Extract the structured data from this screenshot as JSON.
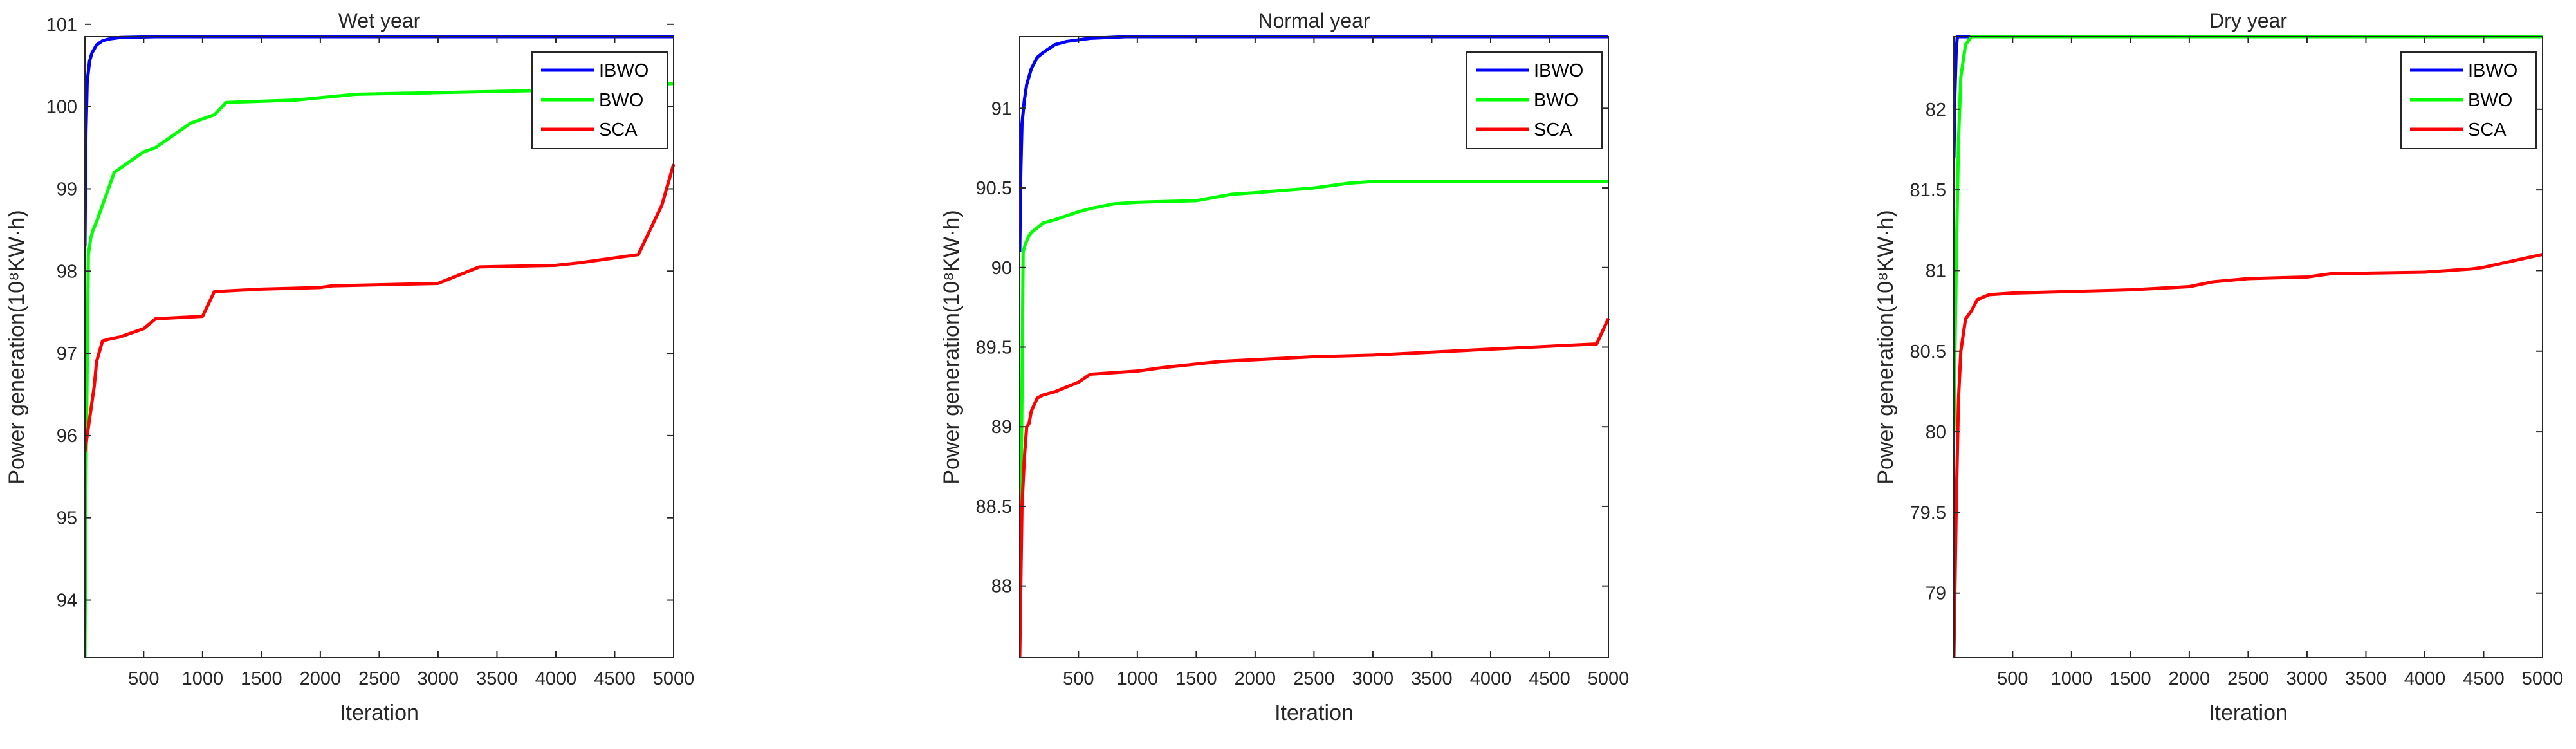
{
  "chart_data": [
    {
      "type": "line",
      "title": "Wet year",
      "xlabel": "Iteration",
      "ylabel": "Power generation(10⁸KW·h)",
      "xlim": [
        1,
        5000
      ],
      "ylim": [
        93.3,
        100.85
      ],
      "xticks": [
        500,
        1000,
        1500,
        2000,
        2500,
        3000,
        3500,
        4000,
        4500,
        5000
      ],
      "xtick_labels": [
        "500",
        "1000",
        "1500",
        "2000",
        "2500",
        "3000",
        "3500",
        "4000",
        "4500",
        "5000"
      ],
      "yticks": [
        94,
        95,
        96,
        97,
        98,
        99,
        100,
        101
      ],
      "ytick_labels": [
        "94",
        "95",
        "96",
        "97",
        "98",
        "99",
        "100",
        "101"
      ],
      "legend_position": "top-right",
      "grid": false,
      "series": [
        {
          "name": "IBWO",
          "color": "#0000ff",
          "x": [
            1,
            5,
            10,
            20,
            40,
            60,
            100,
            150,
            200,
            300,
            600,
            5000
          ],
          "y": [
            98.3,
            99.0,
            99.7,
            100.3,
            100.55,
            100.65,
            100.75,
            100.8,
            100.82,
            100.84,
            100.85,
            100.85
          ]
        },
        {
          "name": "BWO",
          "color": "#00ff00",
          "x": [
            1,
            10,
            30,
            50,
            70,
            100,
            150,
            200,
            250,
            300,
            400,
            500,
            600,
            700,
            800,
            900,
            1000,
            1100,
            1200,
            1800,
            2300,
            3000,
            4000,
            4300,
            5000
          ],
          "y": [
            93.3,
            95.5,
            98.2,
            98.4,
            98.5,
            98.6,
            98.8,
            99.0,
            99.2,
            99.25,
            99.35,
            99.45,
            99.5,
            99.6,
            99.7,
            99.8,
            99.85,
            99.9,
            100.05,
            100.08,
            100.15,
            100.17,
            100.2,
            100.25,
            100.28
          ]
        },
        {
          "name": "SCA",
          "color": "#ff0000",
          "x": [
            1,
            20,
            50,
            80,
            100,
            150,
            200,
            300,
            400,
            500,
            600,
            1000,
            1100,
            1500,
            2000,
            2100,
            3000,
            3350,
            4000,
            4200,
            4700,
            4800,
            4900,
            5000
          ],
          "y": [
            95.8,
            96.0,
            96.3,
            96.6,
            96.9,
            97.15,
            97.17,
            97.2,
            97.25,
            97.3,
            97.42,
            97.45,
            97.75,
            97.78,
            97.8,
            97.82,
            97.85,
            98.05,
            98.07,
            98.1,
            98.2,
            98.5,
            98.8,
            99.3
          ]
        }
      ]
    },
    {
      "type": "line",
      "title": "Normal year",
      "xlabel": "Iteration",
      "ylabel": "Power generation(10⁸KW·h)",
      "xlim": [
        1,
        5000
      ],
      "ylim": [
        87.55,
        91.45
      ],
      "xticks": [
        500,
        1000,
        1500,
        2000,
        2500,
        3000,
        3500,
        4000,
        4500,
        5000
      ],
      "xtick_labels": [
        "500",
        "1000",
        "1500",
        "2000",
        "2500",
        "3000",
        "3500",
        "4000",
        "4500",
        "5000"
      ],
      "yticks": [
        88,
        88.5,
        89,
        89.5,
        90,
        90.5,
        91
      ],
      "ytick_labels": [
        "88",
        "88.5",
        "89",
        "89.5",
        "90",
        "90.5",
        "91"
      ],
      "legend_position": "top-right",
      "grid": false,
      "series": [
        {
          "name": "IBWO",
          "color": "#0000ff",
          "x": [
            1,
            10,
            20,
            40,
            60,
            100,
            150,
            200,
            300,
            400,
            600,
            900,
            5000
          ],
          "y": [
            90.1,
            90.6,
            90.9,
            91.05,
            91.15,
            91.25,
            91.32,
            91.35,
            91.4,
            91.42,
            91.44,
            91.45,
            91.45
          ]
        },
        {
          "name": "BWO",
          "color": "#00ff00",
          "x": [
            1,
            10,
            20,
            30,
            50,
            80,
            100,
            150,
            200,
            300,
            500,
            600,
            800,
            1000,
            1500,
            1800,
            2000,
            2500,
            2800,
            3000,
            5000
          ],
          "y": [
            87.6,
            88.4,
            89.2,
            90.1,
            90.15,
            90.2,
            90.22,
            90.25,
            90.28,
            90.3,
            90.35,
            90.37,
            90.4,
            90.41,
            90.42,
            90.46,
            90.47,
            90.5,
            90.53,
            90.54,
            90.54
          ]
        },
        {
          "name": "SCA",
          "color": "#ff0000",
          "x": [
            1,
            20,
            40,
            60,
            80,
            100,
            150,
            200,
            300,
            400,
            500,
            600,
            1000,
            1200,
            1700,
            2500,
            3000,
            3800,
            4900,
            5000
          ],
          "y": [
            87.55,
            88.5,
            88.8,
            89.0,
            89.02,
            89.1,
            89.18,
            89.2,
            89.22,
            89.25,
            89.28,
            89.33,
            89.35,
            89.37,
            89.41,
            89.44,
            89.45,
            89.48,
            89.52,
            89.68
          ]
        }
      ]
    },
    {
      "type": "line",
      "title": "Dry year",
      "xlabel": "Iteration",
      "ylabel": "Power generation(10⁸KW·h)",
      "xlim": [
        1,
        5000
      ],
      "ylim": [
        78.6,
        82.45
      ],
      "xticks": [
        500,
        1000,
        1500,
        2000,
        2500,
        3000,
        3500,
        4000,
        4500,
        5000
      ],
      "xtick_labels": [
        "500",
        "1000",
        "1500",
        "2000",
        "2500",
        "3000",
        "3500",
        "4000",
        "4500",
        "5000"
      ],
      "yticks": [
        79,
        79.5,
        80,
        80.5,
        81,
        81.5,
        82
      ],
      "ytick_labels": [
        "79",
        "79.5",
        "80",
        "80.5",
        "81",
        "81.5",
        "82"
      ],
      "legend_position": "top-right",
      "grid": false,
      "series": [
        {
          "name": "IBWO",
          "color": "#0000ff",
          "x": [
            1,
            10,
            20,
            30,
            50,
            5000
          ],
          "y": [
            81.7,
            82.1,
            82.35,
            82.45,
            82.45,
            82.45
          ]
        },
        {
          "name": "BWO",
          "color": "#00ff00",
          "x": [
            1,
            20,
            40,
            60,
            80,
            100,
            150,
            5000
          ],
          "y": [
            80.0,
            81.0,
            81.8,
            82.2,
            82.3,
            82.4,
            82.45,
            82.45
          ]
        },
        {
          "name": "SCA",
          "color": "#ff0000",
          "x": [
            1,
            20,
            40,
            60,
            80,
            100,
            150,
            200,
            300,
            500,
            1000,
            1500,
            2000,
            2200,
            2500,
            3000,
            3200,
            4000,
            4400,
            4500,
            5000
          ],
          "y": [
            78.6,
            79.5,
            80.2,
            80.5,
            80.6,
            80.7,
            80.75,
            80.82,
            80.85,
            80.86,
            80.87,
            80.88,
            80.9,
            80.93,
            80.95,
            80.96,
            80.98,
            80.99,
            81.01,
            81.02,
            81.1
          ]
        }
      ]
    }
  ]
}
